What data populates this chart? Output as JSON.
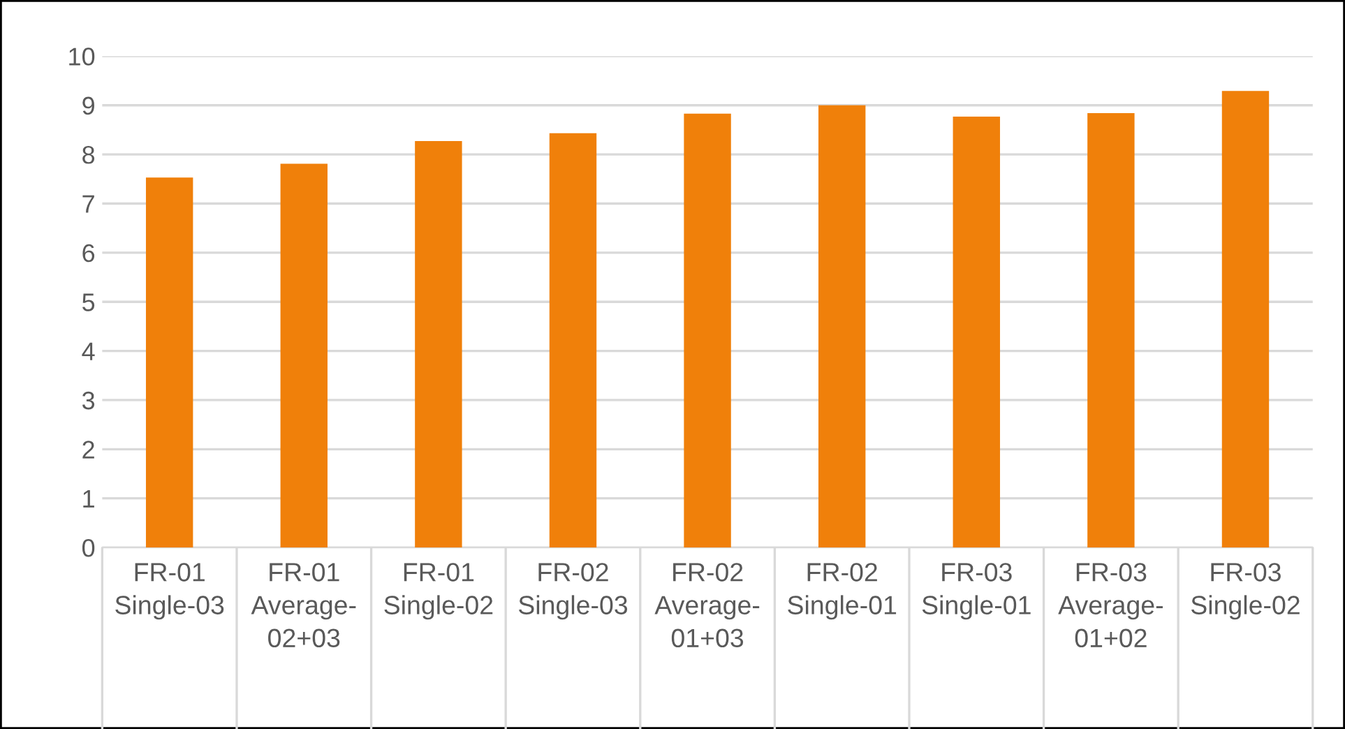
{
  "chart_data": {
    "type": "bar",
    "categories": [
      "FR-01\nSingle-03",
      "FR-01\nAverage-\n02+03",
      "FR-01\nSingle-02",
      "FR-02\nSingle-03",
      "FR-02\nAverage-\n01+03",
      "FR-02\nSingle-01",
      "FR-03\nSingle-01",
      "FR-03\nAverage-\n01+02",
      "FR-03\nSingle-02"
    ],
    "values": [
      7.53,
      7.81,
      8.27,
      8.43,
      8.83,
      9.0,
      8.77,
      8.84,
      9.29
    ],
    "color": "#f0800a",
    "ylim": [
      0,
      10
    ],
    "yticks": [
      0,
      1,
      2,
      3,
      4,
      5,
      6,
      7,
      8,
      9,
      10
    ],
    "grid": "y"
  }
}
